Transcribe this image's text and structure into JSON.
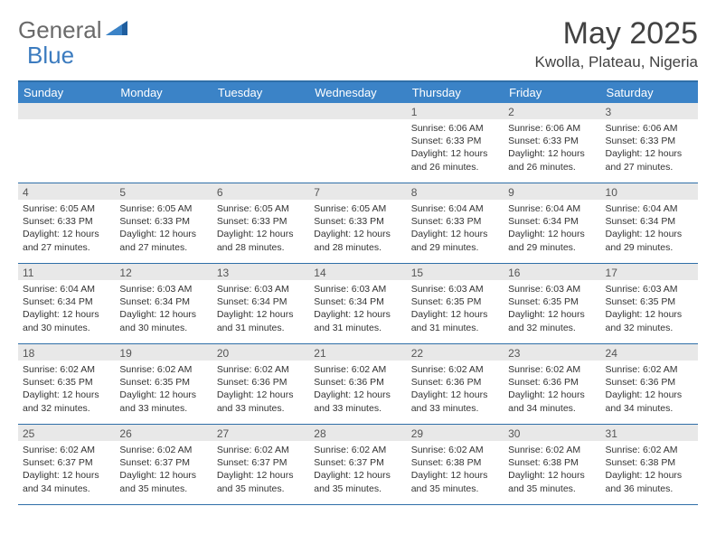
{
  "logo": {
    "part1": "General",
    "part2": "Blue"
  },
  "title": "May 2025",
  "location": "Kwolla, Plateau, Nigeria",
  "colors": {
    "header_bg": "#3b83c7",
    "border": "#2f6fa8",
    "daynum_bg": "#e8e8e8",
    "text": "#333333",
    "logo_gray": "#6a6a6a",
    "logo_blue": "#3b7bbf"
  },
  "day_headers": [
    "Sunday",
    "Monday",
    "Tuesday",
    "Wednesday",
    "Thursday",
    "Friday",
    "Saturday"
  ],
  "weeks": [
    [
      {
        "n": "",
        "sr": "",
        "ss": "",
        "dl": ""
      },
      {
        "n": "",
        "sr": "",
        "ss": "",
        "dl": ""
      },
      {
        "n": "",
        "sr": "",
        "ss": "",
        "dl": ""
      },
      {
        "n": "",
        "sr": "",
        "ss": "",
        "dl": ""
      },
      {
        "n": "1",
        "sr": "Sunrise: 6:06 AM",
        "ss": "Sunset: 6:33 PM",
        "dl": "Daylight: 12 hours and 26 minutes."
      },
      {
        "n": "2",
        "sr": "Sunrise: 6:06 AM",
        "ss": "Sunset: 6:33 PM",
        "dl": "Daylight: 12 hours and 26 minutes."
      },
      {
        "n": "3",
        "sr": "Sunrise: 6:06 AM",
        "ss": "Sunset: 6:33 PM",
        "dl": "Daylight: 12 hours and 27 minutes."
      }
    ],
    [
      {
        "n": "4",
        "sr": "Sunrise: 6:05 AM",
        "ss": "Sunset: 6:33 PM",
        "dl": "Daylight: 12 hours and 27 minutes."
      },
      {
        "n": "5",
        "sr": "Sunrise: 6:05 AM",
        "ss": "Sunset: 6:33 PM",
        "dl": "Daylight: 12 hours and 27 minutes."
      },
      {
        "n": "6",
        "sr": "Sunrise: 6:05 AM",
        "ss": "Sunset: 6:33 PM",
        "dl": "Daylight: 12 hours and 28 minutes."
      },
      {
        "n": "7",
        "sr": "Sunrise: 6:05 AM",
        "ss": "Sunset: 6:33 PM",
        "dl": "Daylight: 12 hours and 28 minutes."
      },
      {
        "n": "8",
        "sr": "Sunrise: 6:04 AM",
        "ss": "Sunset: 6:33 PM",
        "dl": "Daylight: 12 hours and 29 minutes."
      },
      {
        "n": "9",
        "sr": "Sunrise: 6:04 AM",
        "ss": "Sunset: 6:34 PM",
        "dl": "Daylight: 12 hours and 29 minutes."
      },
      {
        "n": "10",
        "sr": "Sunrise: 6:04 AM",
        "ss": "Sunset: 6:34 PM",
        "dl": "Daylight: 12 hours and 29 minutes."
      }
    ],
    [
      {
        "n": "11",
        "sr": "Sunrise: 6:04 AM",
        "ss": "Sunset: 6:34 PM",
        "dl": "Daylight: 12 hours and 30 minutes."
      },
      {
        "n": "12",
        "sr": "Sunrise: 6:03 AM",
        "ss": "Sunset: 6:34 PM",
        "dl": "Daylight: 12 hours and 30 minutes."
      },
      {
        "n": "13",
        "sr": "Sunrise: 6:03 AM",
        "ss": "Sunset: 6:34 PM",
        "dl": "Daylight: 12 hours and 31 minutes."
      },
      {
        "n": "14",
        "sr": "Sunrise: 6:03 AM",
        "ss": "Sunset: 6:34 PM",
        "dl": "Daylight: 12 hours and 31 minutes."
      },
      {
        "n": "15",
        "sr": "Sunrise: 6:03 AM",
        "ss": "Sunset: 6:35 PM",
        "dl": "Daylight: 12 hours and 31 minutes."
      },
      {
        "n": "16",
        "sr": "Sunrise: 6:03 AM",
        "ss": "Sunset: 6:35 PM",
        "dl": "Daylight: 12 hours and 32 minutes."
      },
      {
        "n": "17",
        "sr": "Sunrise: 6:03 AM",
        "ss": "Sunset: 6:35 PM",
        "dl": "Daylight: 12 hours and 32 minutes."
      }
    ],
    [
      {
        "n": "18",
        "sr": "Sunrise: 6:02 AM",
        "ss": "Sunset: 6:35 PM",
        "dl": "Daylight: 12 hours and 32 minutes."
      },
      {
        "n": "19",
        "sr": "Sunrise: 6:02 AM",
        "ss": "Sunset: 6:35 PM",
        "dl": "Daylight: 12 hours and 33 minutes."
      },
      {
        "n": "20",
        "sr": "Sunrise: 6:02 AM",
        "ss": "Sunset: 6:36 PM",
        "dl": "Daylight: 12 hours and 33 minutes."
      },
      {
        "n": "21",
        "sr": "Sunrise: 6:02 AM",
        "ss": "Sunset: 6:36 PM",
        "dl": "Daylight: 12 hours and 33 minutes."
      },
      {
        "n": "22",
        "sr": "Sunrise: 6:02 AM",
        "ss": "Sunset: 6:36 PM",
        "dl": "Daylight: 12 hours and 33 minutes."
      },
      {
        "n": "23",
        "sr": "Sunrise: 6:02 AM",
        "ss": "Sunset: 6:36 PM",
        "dl": "Daylight: 12 hours and 34 minutes."
      },
      {
        "n": "24",
        "sr": "Sunrise: 6:02 AM",
        "ss": "Sunset: 6:36 PM",
        "dl": "Daylight: 12 hours and 34 minutes."
      }
    ],
    [
      {
        "n": "25",
        "sr": "Sunrise: 6:02 AM",
        "ss": "Sunset: 6:37 PM",
        "dl": "Daylight: 12 hours and 34 minutes."
      },
      {
        "n": "26",
        "sr": "Sunrise: 6:02 AM",
        "ss": "Sunset: 6:37 PM",
        "dl": "Daylight: 12 hours and 35 minutes."
      },
      {
        "n": "27",
        "sr": "Sunrise: 6:02 AM",
        "ss": "Sunset: 6:37 PM",
        "dl": "Daylight: 12 hours and 35 minutes."
      },
      {
        "n": "28",
        "sr": "Sunrise: 6:02 AM",
        "ss": "Sunset: 6:37 PM",
        "dl": "Daylight: 12 hours and 35 minutes."
      },
      {
        "n": "29",
        "sr": "Sunrise: 6:02 AM",
        "ss": "Sunset: 6:38 PM",
        "dl": "Daylight: 12 hours and 35 minutes."
      },
      {
        "n": "30",
        "sr": "Sunrise: 6:02 AM",
        "ss": "Sunset: 6:38 PM",
        "dl": "Daylight: 12 hours and 35 minutes."
      },
      {
        "n": "31",
        "sr": "Sunrise: 6:02 AM",
        "ss": "Sunset: 6:38 PM",
        "dl": "Daylight: 12 hours and 36 minutes."
      }
    ]
  ]
}
